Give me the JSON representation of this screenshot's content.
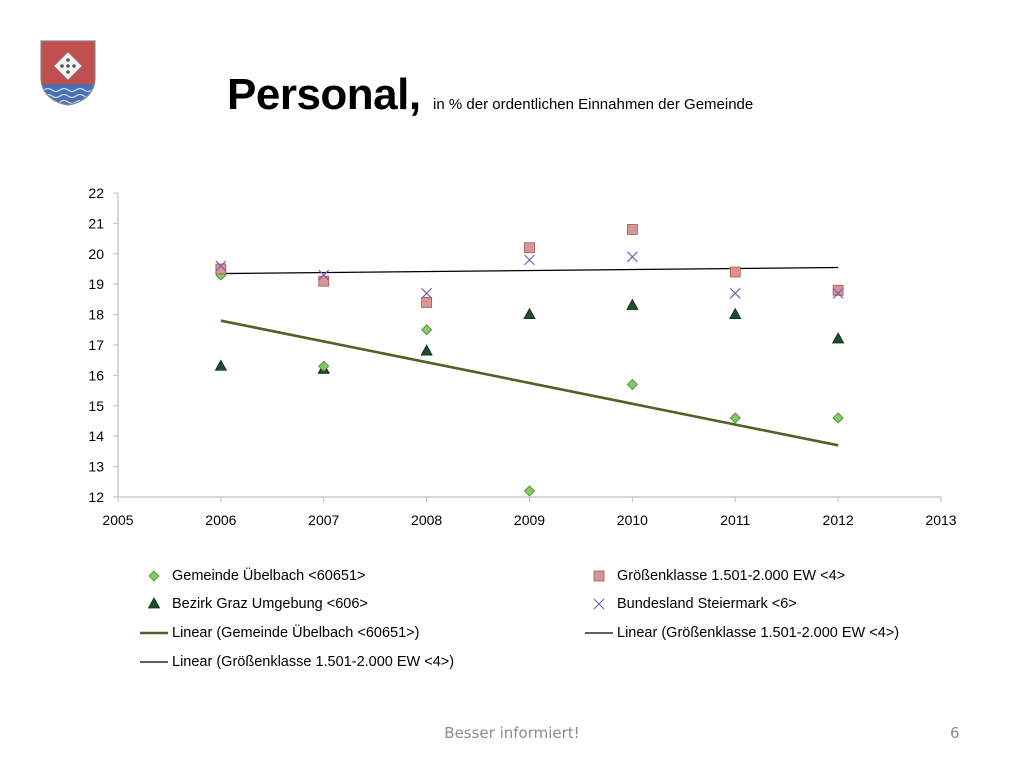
{
  "slide": {
    "title": "Personal,",
    "subtitle": "in % der ordentlichen Einnahmen der Gemeinde",
    "footer": "Besser informiert!",
    "page_number": "6"
  },
  "colors": {
    "diamond_fill": "#7fce5f",
    "diamond_stroke": "#4f7f3a",
    "square_fill": "#d99594",
    "square_stroke": "#a05a59",
    "triangle_fill": "#1f4d2e",
    "triangle_stroke": "#0d2a18",
    "cross": "#7a5fb5",
    "trend_green": "#4f6228",
    "trend_black": "#000000",
    "axis": "#bfbfbf"
  },
  "chart_data": {
    "type": "scatter",
    "title": "",
    "xlabel": "",
    "ylabel": "",
    "xlim": [
      2005,
      2013
    ],
    "ylim": [
      12,
      22
    ],
    "x_ticks": [
      "2005",
      "2006",
      "2007",
      "2008",
      "2009",
      "2010",
      "2011",
      "2012",
      "2013"
    ],
    "y_ticks": [
      "12",
      "13",
      "14",
      "15",
      "16",
      "17",
      "18",
      "19",
      "20",
      "21",
      "22"
    ],
    "grid": false,
    "legend_position": "bottom",
    "series": [
      {
        "name": "Gemeinde Übelbach <60651>",
        "marker": "diamond",
        "x": [
          2006,
          2007,
          2008,
          2009,
          2010,
          2011,
          2012
        ],
        "y": [
          19.3,
          16.3,
          17.5,
          12.2,
          15.7,
          14.6,
          14.6
        ]
      },
      {
        "name": "Größenklasse 1.501-2.000 EW <4>",
        "marker": "square",
        "x": [
          2006,
          2007,
          2008,
          2009,
          2010,
          2011,
          2012
        ],
        "y": [
          19.5,
          19.1,
          18.4,
          20.2,
          20.8,
          19.4,
          18.8
        ]
      },
      {
        "name": "Bezirk Graz Umgebung <606>",
        "marker": "triangle",
        "x": [
          2006,
          2007,
          2008,
          2009,
          2010,
          2011,
          2012
        ],
        "y": [
          16.3,
          16.2,
          16.8,
          18.0,
          18.3,
          18.0,
          17.2
        ]
      },
      {
        "name": "Bundesland Steiermark <6>",
        "marker": "cross",
        "x": [
          2006,
          2007,
          2008,
          2009,
          2010,
          2011,
          2012
        ],
        "y": [
          19.6,
          19.3,
          18.7,
          19.8,
          19.9,
          18.7,
          18.7
        ]
      }
    ],
    "trendlines": [
      {
        "name": "Linear (Gemeinde Übelbach <60651>)",
        "style": "green-thick",
        "x": [
          2006,
          2012
        ],
        "y": [
          17.8,
          13.7
        ]
      },
      {
        "name": "Linear (Größenklasse 1.501-2.000 EW <4>)",
        "style": "black-thin",
        "x": [
          2006,
          2012
        ],
        "y": [
          19.35,
          19.55
        ]
      },
      {
        "name": "Linear (Größenklasse 1.501-2.000 EW <4>)",
        "style": "black-thin",
        "x": [],
        "y": []
      }
    ]
  },
  "legend": [
    {
      "label": "Gemeinde Übelbach <60651>",
      "symbol": "diamond"
    },
    {
      "label": "Größenklasse 1.501-2.000 EW <4>",
      "symbol": "square"
    },
    {
      "label": "Bezirk Graz Umgebung <606>",
      "symbol": "triangle"
    },
    {
      "label": "Bundesland Steiermark <6>",
      "symbol": "cross"
    },
    {
      "label": "Linear (Gemeinde Übelbach <60651>)",
      "symbol": "line-green"
    },
    {
      "label": "Linear (Größenklasse 1.501-2.000 EW <4>)",
      "symbol": "line-black"
    },
    {
      "label": "Linear (Größenklasse 1.501-2.000 EW <4>)",
      "symbol": "line-black"
    }
  ]
}
